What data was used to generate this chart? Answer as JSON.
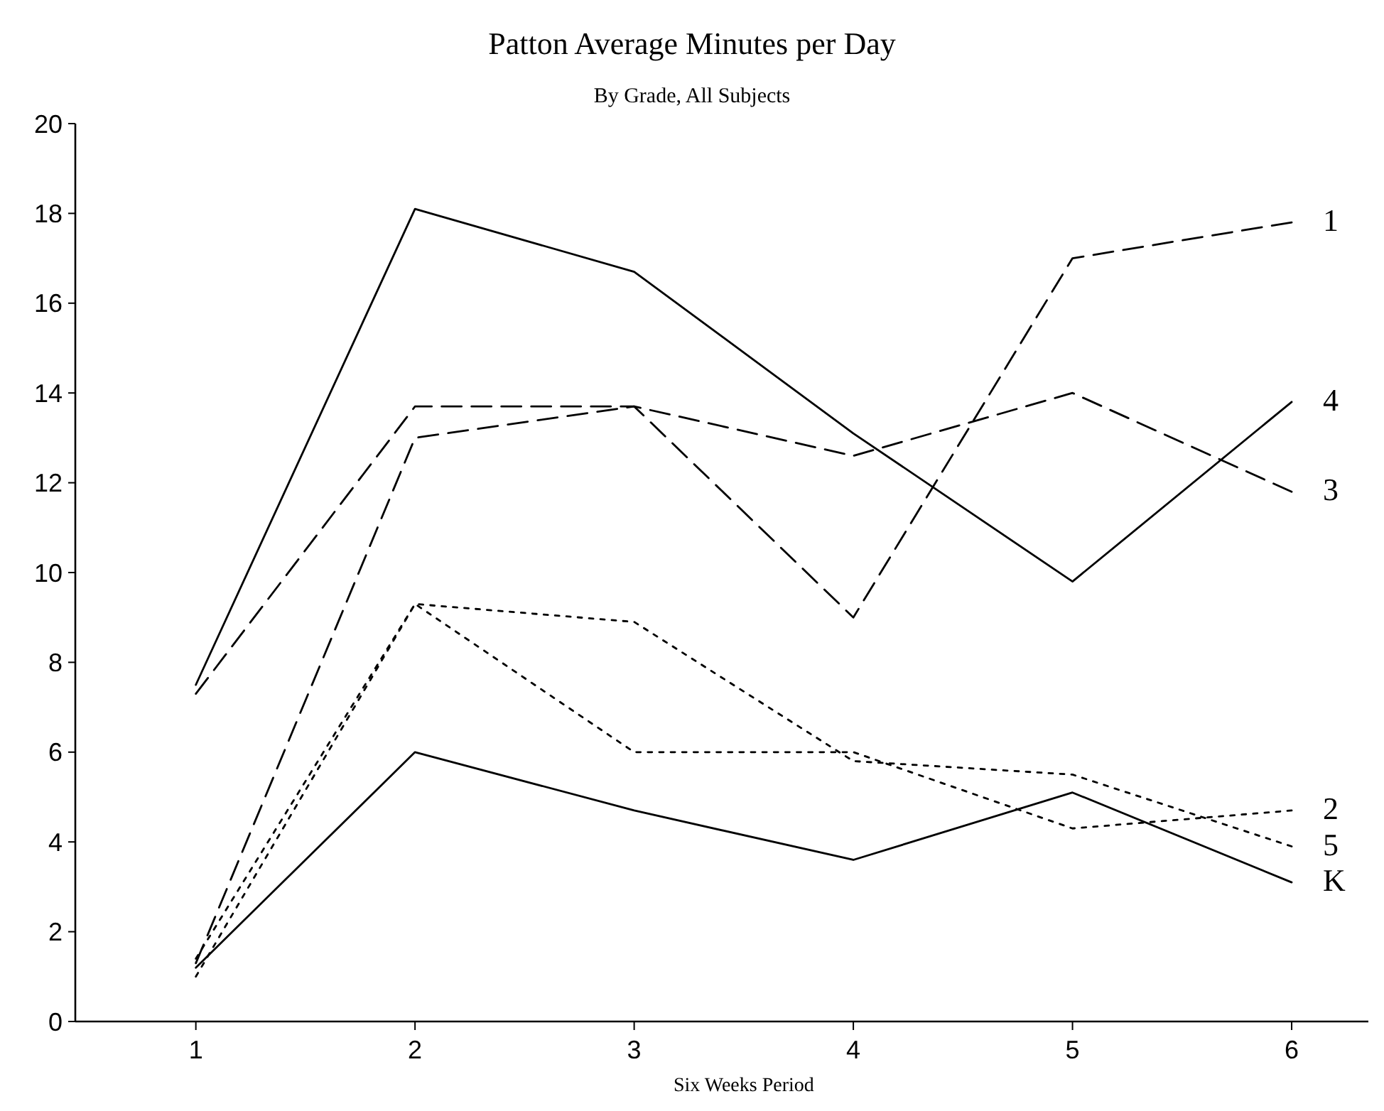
{
  "chart_data": {
    "type": "line",
    "title": "Patton Average Minutes per Day",
    "subtitle": "By Grade, All Subjects",
    "xlabel": "Six Weeks Period",
    "x": [
      1,
      2,
      3,
      4,
      5,
      6
    ],
    "xlim": [
      0.45,
      6.35
    ],
    "xticks": [
      1,
      2,
      3,
      4,
      5,
      6
    ],
    "ylim": [
      0,
      20
    ],
    "yticks": [
      0,
      2,
      4,
      6,
      8,
      10,
      12,
      14,
      16,
      18,
      20
    ],
    "grid": false,
    "legend": false,
    "marker": "none",
    "series": [
      {
        "name": "1",
        "color": "#000000",
        "line_style": "dashed",
        "values": [
          1.3,
          13.0,
          13.7,
          9.0,
          17.0,
          17.8
        ]
      },
      {
        "name": "4",
        "color": "#000000",
        "line_style": "solid",
        "values": [
          7.5,
          18.1,
          16.7,
          13.1,
          9.8,
          13.8
        ]
      },
      {
        "name": "3",
        "color": "#000000",
        "line_style": "dashed",
        "values": [
          7.3,
          13.7,
          13.7,
          12.6,
          14.0,
          11.8
        ]
      },
      {
        "name": "2",
        "color": "#000000",
        "line_style": "dotted",
        "values": [
          1.0,
          9.3,
          6.0,
          6.0,
          4.3,
          4.7
        ]
      },
      {
        "name": "5",
        "color": "#000000",
        "line_style": "dotted",
        "values": [
          1.4,
          9.3,
          8.9,
          5.8,
          5.5,
          3.9
        ]
      },
      {
        "name": "K",
        "color": "#000000",
        "line_style": "solid",
        "values": [
          1.2,
          6.0,
          4.7,
          3.6,
          5.1,
          3.1
        ]
      }
    ]
  }
}
